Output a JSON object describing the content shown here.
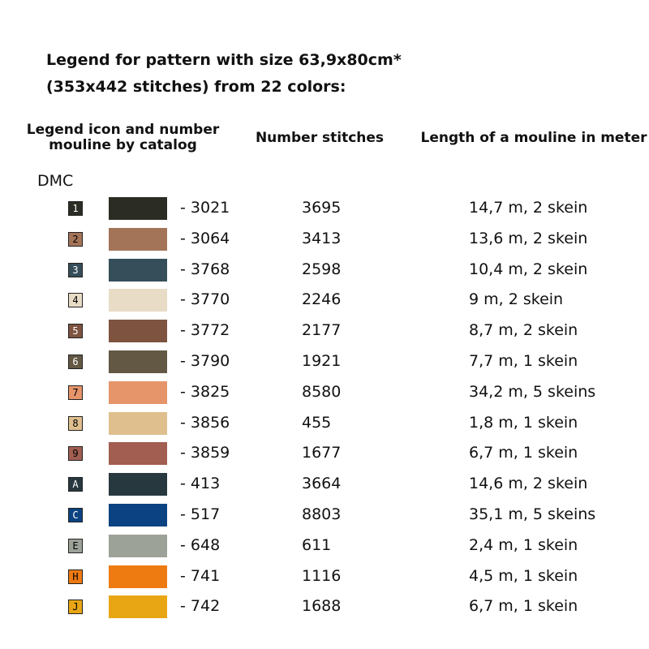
{
  "title": {
    "line1": "Legend for pattern with size 63,9x80cm*",
    "line2": "(353x442 stitches) from 22 colors:"
  },
  "headers": {
    "legend_line1": "Legend icon and number",
    "legend_line2": "mouline by catalog",
    "stitches": "Number stitches",
    "length": "Length of a mouline in meter"
  },
  "brand": "DMC",
  "rows": [
    {
      "icon": "1",
      "code": "- 3021",
      "stitches": "3695",
      "length": "14,7 m, 2 skein",
      "swatch_color": "#2b2c24",
      "icon_bg": "#2b2c24",
      "icon_fg": "#ffffff"
    },
    {
      "icon": "2",
      "code": "- 3064",
      "stitches": "3413",
      "length": "13,6 m, 2 skein",
      "swatch_color": "#a47459",
      "icon_bg": "#a47459",
      "icon_fg": "#000000"
    },
    {
      "icon": "3",
      "code": "- 3768",
      "stitches": "2598",
      "length": "10,4 m, 2 skein",
      "swatch_color": "#354e5a",
      "icon_bg": "#354e5a",
      "icon_fg": "#ffffff"
    },
    {
      "icon": "4",
      "code": "- 3770",
      "stitches": "2246",
      "length": "9 m, 2 skein",
      "swatch_color": "#e8dcc6",
      "icon_bg": "#e8dcc6",
      "icon_fg": "#000000"
    },
    {
      "icon": "5",
      "code": "- 3772",
      "stitches": "2177",
      "length": "8,7 m, 2 skein",
      "swatch_color": "#7e5340",
      "icon_bg": "#7e5340",
      "icon_fg": "#ffffff"
    },
    {
      "icon": "6",
      "code": "- 3790",
      "stitches": "1921",
      "length": "7,7 m, 1 skein",
      "swatch_color": "#625844",
      "icon_bg": "#625844",
      "icon_fg": "#ffffff"
    },
    {
      "icon": "7",
      "code": "- 3825",
      "stitches": "8580",
      "length": "34,2 m, 5 skeins",
      "swatch_color": "#e6946a",
      "icon_bg": "#e6946a",
      "icon_fg": "#000000"
    },
    {
      "icon": "8",
      "code": "- 3856",
      "stitches": "455",
      "length": "1,8 m, 1 skein",
      "swatch_color": "#dfbf8e",
      "icon_bg": "#dfbf8e",
      "icon_fg": "#000000"
    },
    {
      "icon": "9",
      "code": "- 3859",
      "stitches": "1677",
      "length": "6,7 m, 1 skein",
      "swatch_color": "#a15e51",
      "icon_bg": "#a15e51",
      "icon_fg": "#000000"
    },
    {
      "icon": "A",
      "code": "- 413",
      "stitches": "3664",
      "length": "14,6 m, 2 skein",
      "swatch_color": "#28383f",
      "icon_bg": "#28383f",
      "icon_fg": "#ffffff"
    },
    {
      "icon": "C",
      "code": "- 517",
      "stitches": "8803",
      "length": "35,1 m, 5 skeins",
      "swatch_color": "#0b4382",
      "icon_bg": "#0b4382",
      "icon_fg": "#ffffff"
    },
    {
      "icon": "E",
      "code": "- 648",
      "stitches": "611",
      "length": "2,4 m, 1 skein",
      "swatch_color": "#9da298",
      "icon_bg": "#9da298",
      "icon_fg": "#000000"
    },
    {
      "icon": "H",
      "code": "- 741",
      "stitches": "1116",
      "length": "4,5 m, 1 skein",
      "swatch_color": "#ee7a12",
      "icon_bg": "#ee7a12",
      "icon_fg": "#000000"
    },
    {
      "icon": "J",
      "code": "- 742",
      "stitches": "1688",
      "length": "6,7 m, 1 skein",
      "swatch_color": "#e9a614",
      "icon_bg": "#e9a614",
      "icon_fg": "#000000"
    }
  ]
}
